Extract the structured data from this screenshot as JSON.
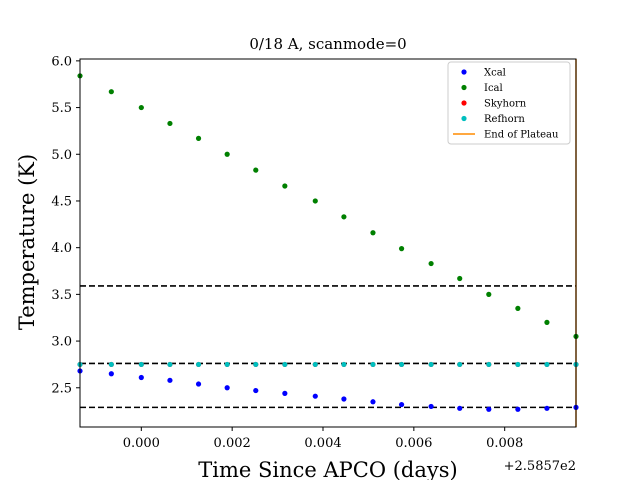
{
  "chart_data": {
    "type": "scatter",
    "title": "0/18 A, scanmode=0",
    "xlabel": "Time Since APCO (days)",
    "ylabel": "Temperature (K)",
    "x_offset_label": "+2.5857e2",
    "xlim": [
      -0.00135,
      0.00957
    ],
    "ylim": [
      2.08,
      6.02
    ],
    "x_ticks": [
      0.0,
      0.002,
      0.004,
      0.006,
      0.008
    ],
    "x_tick_labels": [
      "0.000",
      "0.002",
      "0.004",
      "0.006",
      "0.008"
    ],
    "y_ticks": [
      2.5,
      3.0,
      3.5,
      4.0,
      4.5,
      5.0,
      5.5,
      6.0
    ],
    "y_tick_labels": [
      "2.5",
      "3.0",
      "3.5",
      "4.0",
      "4.5",
      "5.0",
      "5.5",
      "6.0"
    ],
    "x": [
      -0.00135,
      -0.00066,
      0.0,
      0.00063,
      0.00126,
      0.00189,
      0.00252,
      0.00316,
      0.00383,
      0.00446,
      0.0051,
      0.00573,
      0.00638,
      0.00701,
      0.00765,
      0.00829,
      0.00893,
      0.00957
    ],
    "series": [
      {
        "name": "Xcal",
        "color": "#0000ff",
        "values": [
          2.68,
          2.65,
          2.61,
          2.58,
          2.54,
          2.5,
          2.47,
          2.44,
          2.41,
          2.38,
          2.35,
          2.32,
          2.3,
          2.28,
          2.27,
          2.27,
          2.28,
          2.29
        ]
      },
      {
        "name": "Ical",
        "color": "#008000",
        "values": [
          5.84,
          5.67,
          5.5,
          5.33,
          5.17,
          5.0,
          4.83,
          4.66,
          4.5,
          4.33,
          4.16,
          3.99,
          3.83,
          3.67,
          3.5,
          3.35,
          3.2,
          3.05
        ]
      },
      {
        "name": "Skyhorn",
        "color": "#ff0000",
        "values": [
          2.75,
          2.75,
          2.75,
          2.75,
          2.75,
          2.75,
          2.75,
          2.75,
          2.75,
          2.75,
          2.75,
          2.75,
          2.75,
          2.75,
          2.75,
          2.75,
          2.75,
          2.75
        ]
      },
      {
        "name": "Refhorn",
        "color": "#00bfbf",
        "values": [
          2.75,
          2.75,
          2.75,
          2.75,
          2.75,
          2.75,
          2.75,
          2.75,
          2.75,
          2.75,
          2.75,
          2.75,
          2.75,
          2.75,
          2.75,
          2.75,
          2.75,
          2.75
        ]
      }
    ],
    "hlines": [
      3.59,
      2.76,
      2.29
    ],
    "end_of_plateau": {
      "name": "End of Plateau",
      "color": "#ff8c00",
      "x": 0.00957
    },
    "legend_position": "upper-right",
    "grid": false
  }
}
